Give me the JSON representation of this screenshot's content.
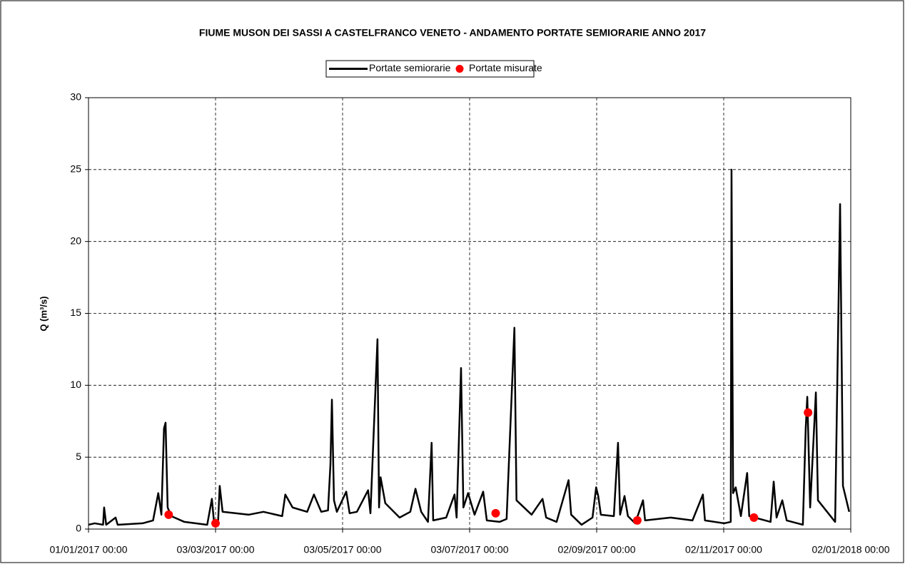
{
  "chart_data": {
    "type": "line",
    "title": "FIUME MUSON DEI SASSI A CASTELFRANCO VENETO - ANDAMENTO PORTATE SEMIORARIE ANNO 2017",
    "y_label": "Q (m³/s)",
    "xlim": [
      "2017-01-01T00:00",
      "2018-01-02T00:00"
    ],
    "xticks": [
      {
        "value": "2017-01-01T00:00",
        "label": "01/01/2017 00:00"
      },
      {
        "value": "2017-03-03T00:00",
        "label": "03/03/2017 00:00"
      },
      {
        "value": "2017-05-03T00:00",
        "label": "03/05/2017 00:00"
      },
      {
        "value": "2017-07-03T00:00",
        "label": "03/07/2017 00:00"
      },
      {
        "value": "2017-09-02T00:00",
        "label": "02/09/2017 00:00"
      },
      {
        "value": "2017-11-02T00:00",
        "label": "02/11/2017 00:00"
      },
      {
        "value": "2018-01-02T00:00",
        "label": "02/01/2018 00:00"
      }
    ],
    "ylim": [
      0,
      30
    ],
    "yticks": [
      0,
      5,
      10,
      15,
      20,
      25,
      30
    ],
    "grid": true,
    "legend": "top",
    "series": [
      {
        "name": "Portate semiorarie",
        "type": "line",
        "color": "#000000",
        "x": [
          "2017-01-01T00:00",
          "2017-01-04T00:00",
          "2017-01-08T00:00",
          "2017-01-08T12:00",
          "2017-01-09T12:00",
          "2017-01-14T00:00",
          "2017-01-15T00:00",
          "2017-01-27T00:00",
          "2017-02-01T00:00",
          "2017-02-03T12:00",
          "2017-02-05T00:00",
          "2017-02-06T06:00",
          "2017-02-07T00:00",
          "2017-02-08T00:00",
          "2017-02-09T18:00",
          "2017-02-16T00:00",
          "2017-02-27T00:00",
          "2017-03-01T06:00",
          "2017-03-02T06:00",
          "2017-03-04T06:00",
          "2017-03-05T00:00",
          "2017-03-06T09:00",
          "2017-03-19T00:00",
          "2017-03-26T00:00",
          "2017-04-04T00:00",
          "2017-04-05T12:00",
          "2017-04-09T00:00",
          "2017-04-16T00:00",
          "2017-04-19T06:00",
          "2017-04-22T18:00",
          "2017-04-26T00:00",
          "2017-04-27T04:00",
          "2017-04-27T21:00",
          "2017-04-28T21:00",
          "2017-04-30T06:00",
          "2017-05-04T18:00",
          "2017-05-06T09:00",
          "2017-05-09T21:00",
          "2017-05-15T06:00",
          "2017-05-16T09:00",
          "2017-05-19T18:00",
          "2017-05-20T12:00",
          "2017-05-21T06:00",
          "2017-05-23T12:00",
          "2017-05-30T09:00",
          "2017-06-04T12:00",
          "2017-06-07T00:00",
          "2017-06-09T18:00",
          "2017-06-13T00:00",
          "2017-06-14T18:00",
          "2017-06-15T12:00",
          "2017-06-21T18:00",
          "2017-06-25T18:00",
          "2017-06-26T18:00",
          "2017-06-28T21:00",
          "2017-06-30T00:00",
          "2017-07-02T06:00",
          "2017-07-05T09:00",
          "2017-07-09T12:00",
          "2017-07-11T06:00",
          "2017-07-17T09:00",
          "2017-07-20T18:00",
          "2017-07-24T12:00",
          "2017-07-25T12:00",
          "2017-08-01T18:00",
          "2017-08-07T00:00",
          "2017-08-08T18:00",
          "2017-08-13T18:00",
          "2017-08-19T12:00",
          "2017-08-20T18:00",
          "2017-08-25T18:00",
          "2017-08-31T00:00",
          "2017-09-01T18:00",
          "2017-09-02T18:00",
          "2017-09-04T00:00",
          "2017-09-10T06:00",
          "2017-09-12T06:00",
          "2017-09-13T06:00",
          "2017-09-15T09:00",
          "2017-09-17T00:00",
          "2017-09-20T12:00",
          "2017-09-24T06:00",
          "2017-09-25T06:00",
          "2017-10-07T12:00",
          "2017-10-18T00:00",
          "2017-10-23T00:00",
          "2017-10-24T00:00",
          "2017-11-02T06:00",
          "2017-11-05T09:00",
          "2017-11-05T18:00",
          "2017-11-06T12:00",
          "2017-11-07T18:00",
          "2017-11-10T06:00",
          "2017-11-13T06:00",
          "2017-11-14T06:00",
          "2017-11-24T12:00",
          "2017-11-26T00:00",
          "2017-11-27T09:00",
          "2017-11-30T03:00",
          "2017-12-02T06:00",
          "2017-12-10T00:00",
          "2017-12-11T09:00",
          "2017-12-12T03:00",
          "2017-12-13T12:00",
          "2017-12-16T06:00",
          "2017-12-17T06:00",
          "2017-12-25T12:00",
          "2017-12-27T21:00",
          "2017-12-29T06:00",
          "2018-01-01T06:00"
        ],
        "values": [
          0.3,
          0.4,
          0.3,
          1.5,
          0.3,
          0.8,
          0.3,
          0.4,
          0.6,
          2.5,
          1.0,
          7.0,
          7.4,
          1.5,
          0.9,
          0.5,
          0.3,
          2.1,
          0.5,
          0.6,
          3.0,
          1.2,
          1.0,
          1.2,
          0.9,
          2.4,
          1.5,
          1.2,
          2.4,
          1.2,
          1.3,
          4.5,
          9.0,
          2.0,
          1.2,
          2.6,
          1.1,
          1.2,
          2.7,
          1.1,
          13.2,
          1.5,
          3.6,
          1.8,
          0.8,
          1.2,
          2.8,
          1.2,
          0.5,
          6.0,
          0.6,
          0.8,
          2.4,
          0.8,
          11.2,
          1.5,
          2.5,
          1.0,
          2.6,
          0.6,
          0.5,
          0.7,
          14.0,
          2.0,
          1.0,
          2.1,
          0.8,
          0.5,
          3.4,
          1.0,
          0.3,
          0.8,
          2.9,
          2.3,
          1.0,
          0.9,
          6.0,
          1.0,
          2.3,
          0.9,
          0.4,
          2.0,
          0.6,
          0.8,
          0.6,
          2.4,
          0.6,
          0.4,
          0.5,
          25.0,
          2.5,
          2.9,
          0.9,
          3.9,
          0.9,
          0.5,
          3.3,
          0.8,
          2.0,
          0.6,
          0.3,
          7.0,
          9.2,
          1.5,
          9.5,
          2.0,
          0.5,
          22.6,
          3.0,
          1.2
        ]
      },
      {
        "name": "Portate misurate",
        "type": "scatter",
        "color": "#ff0000",
        "x": [
          "2017-02-08T12:00",
          "2017-03-03T00:00",
          "2017-07-15T12:00",
          "2017-09-21T12:00",
          "2017-11-16T12:00",
          "2017-12-12T12:00"
        ],
        "values": [
          1.0,
          0.4,
          1.1,
          0.6,
          0.8,
          8.1
        ]
      }
    ]
  }
}
